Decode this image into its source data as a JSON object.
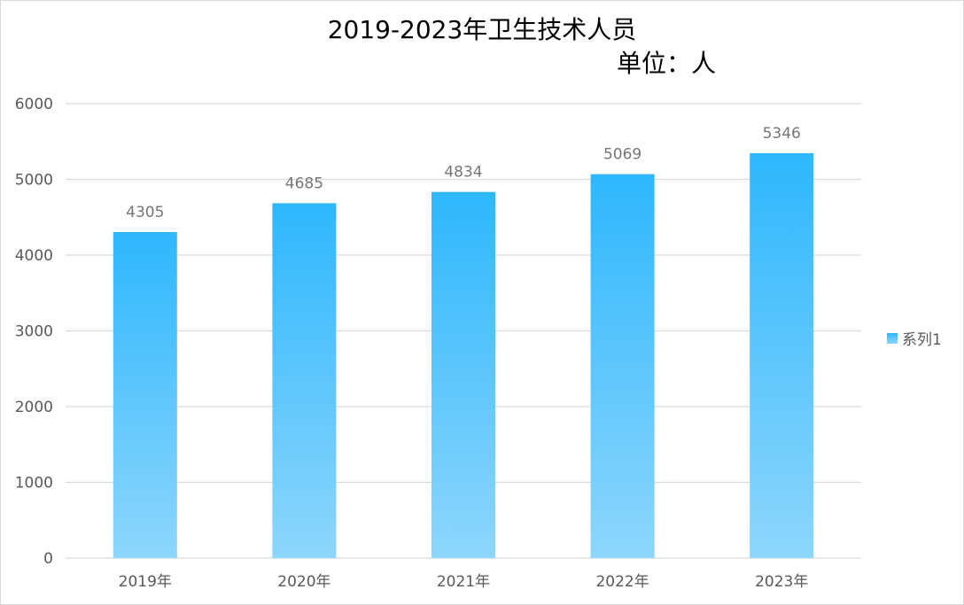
{
  "chart_data": {
    "type": "bar",
    "title": "2019-2023年卫生技术人员",
    "subtitle": "单位：人",
    "categories": [
      "2019年",
      "2020年",
      "2021年",
      "2022年",
      "2023年"
    ],
    "series": [
      {
        "name": "系列1",
        "values": [
          4305,
          4685,
          4834,
          5069,
          5346
        ]
      }
    ],
    "ylim": [
      0,
      6000
    ],
    "yticks": [
      0,
      1000,
      2000,
      3000,
      4000,
      5000,
      6000
    ],
    "grid": true,
    "legend_position": "right",
    "colors": {
      "bar_top": "#2eb7fd",
      "bar_bottom": "#8dd6fc",
      "gridline": "#d9d9d9",
      "axis_text": "#595959",
      "data_label": "#767676"
    }
  }
}
